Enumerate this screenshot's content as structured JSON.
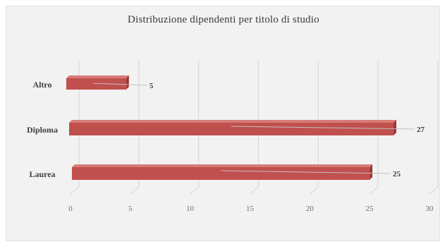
{
  "chart_data": {
    "type": "bar",
    "orientation": "horizontal",
    "style": "3d",
    "title": "Distribuzione dipendenti per titolo di studio",
    "categories": [
      "Altro",
      "Diploma",
      "Laurea"
    ],
    "values": [
      5,
      27,
      25
    ],
    "xlim": [
      0,
      30
    ],
    "x_ticks": [
      "0",
      "5",
      "10",
      "15",
      "20",
      "25",
      "30"
    ],
    "data_labels": [
      "5",
      "27",
      "25"
    ],
    "grid": true,
    "legend": "none",
    "colors": {
      "bar_front": "#c0504d",
      "bar_top": "#d77b78",
      "bar_end": "#9a3532",
      "gridline": "#d6d6d6",
      "leader_line": "#bfbfbf"
    }
  }
}
